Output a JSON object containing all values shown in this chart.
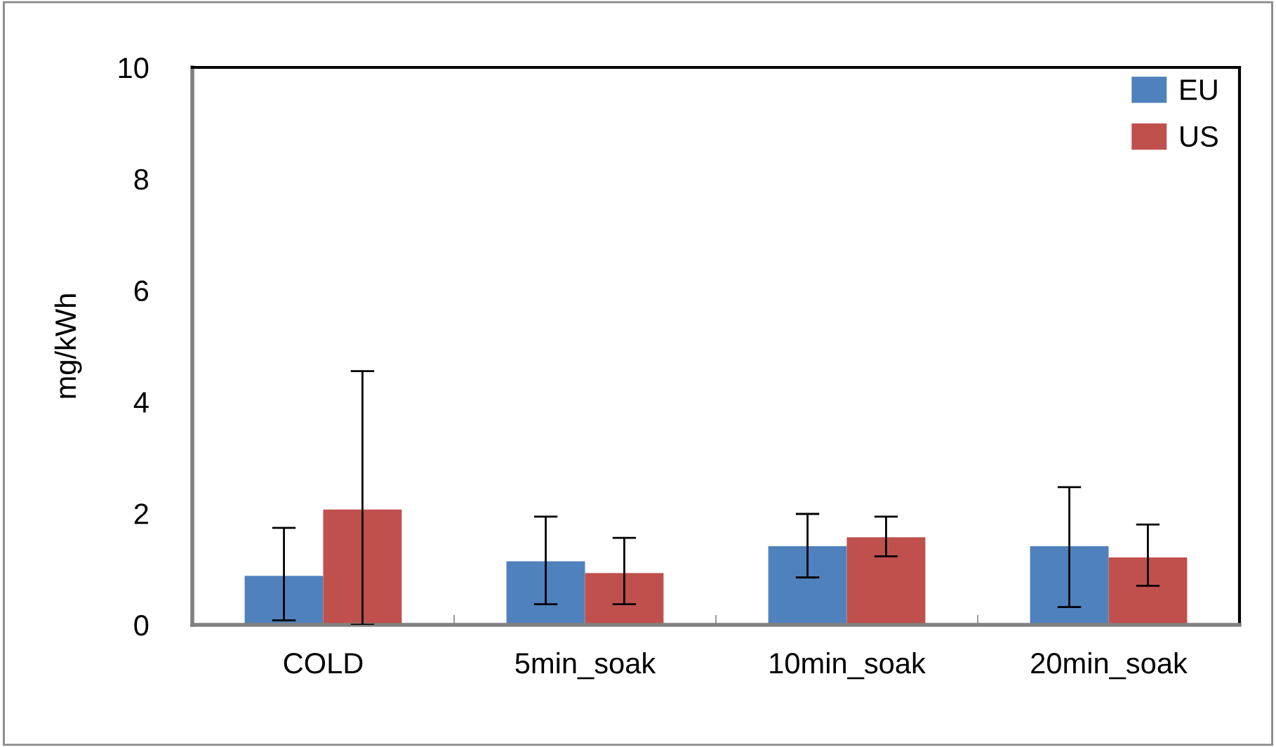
{
  "chart_data": {
    "type": "bar",
    "ylabel": "mg/kWh",
    "categories": [
      "COLD",
      "5min_soak",
      "10min_soak",
      "20min_soak"
    ],
    "series": [
      {
        "name": "EU",
        "color": "#4f81bd",
        "values": [
          0.88,
          1.14,
          1.41,
          1.41
        ],
        "errors": [
          [
            0.08,
            1.74
          ],
          [
            0.37,
            1.94
          ],
          [
            0.85,
            1.99
          ],
          [
            0.32,
            2.47
          ]
        ]
      },
      {
        "name": "US",
        "color": "#c0504d",
        "values": [
          2.07,
          0.93,
          1.57,
          1.21
        ],
        "errors": [
          [
            0,
            4.55
          ],
          [
            0.37,
            1.56
          ],
          [
            1.23,
            1.94
          ],
          [
            0.7,
            1.8
          ]
        ]
      }
    ],
    "ylim": [
      0,
      10
    ],
    "yticks": [
      0,
      2,
      4,
      6,
      8,
      10
    ],
    "grid": false,
    "legend": "top right"
  }
}
